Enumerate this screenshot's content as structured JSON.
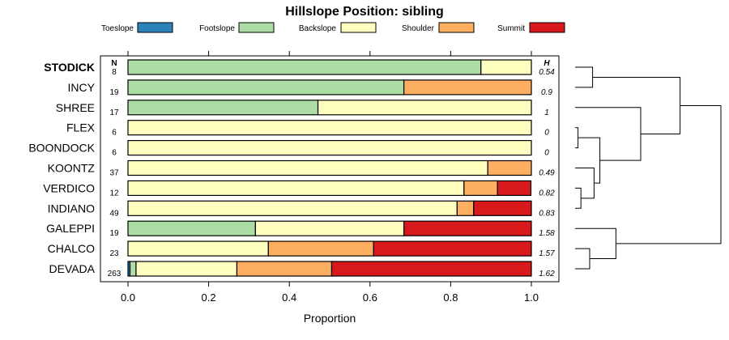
{
  "chart_data": {
    "type": "bar",
    "stacked": true,
    "orientation": "horizontal",
    "title": "Hillslope Position: sibling",
    "xlabel": "Proportion",
    "xlim": [
      0,
      1
    ],
    "xticks": [
      0.0,
      0.2,
      0.4,
      0.6,
      0.8,
      1.0
    ],
    "xtick_labels": [
      "0.0",
      "0.2",
      "0.4",
      "0.6",
      "0.8",
      "1.0"
    ],
    "legend_position": "top",
    "n_header": "N",
    "h_header": "H",
    "bold_category": "STODICK",
    "categories": [
      "STODICK",
      "INCY",
      "SHREE",
      "FLEX",
      "BOONDOCK",
      "KOONTZ",
      "VERDICO",
      "INDIANO",
      "GALEPPI",
      "CHALCO",
      "DEVADA"
    ],
    "n": [
      "8",
      "19",
      "17",
      "6",
      "6",
      "37",
      "12",
      "49",
      "19",
      "23",
      "263"
    ],
    "h": [
      "0.54",
      "0.9",
      "1",
      "0",
      "0",
      "0.49",
      "0.82",
      "0.83",
      "1.58",
      "1.57",
      "1.62"
    ],
    "series": [
      {
        "name": "Toeslope",
        "color": "#2B83BA",
        "values": [
          0,
          0,
          0,
          0,
          0,
          0,
          0,
          0,
          0,
          0,
          0.005
        ]
      },
      {
        "name": "Footslope",
        "color": "#ABDDA4",
        "values": [
          0.875,
          0.684,
          0.471,
          0,
          0,
          0,
          0,
          0,
          0.316,
          0,
          0.015
        ]
      },
      {
        "name": "Backslope",
        "color": "#FFFFBF",
        "values": [
          0.125,
          0,
          0.529,
          1,
          1,
          0.892,
          0.833,
          0.816,
          0.368,
          0.348,
          0.25
        ]
      },
      {
        "name": "Shoulder",
        "color": "#FDAE61",
        "values": [
          0,
          0.316,
          0,
          0,
          0,
          0.108,
          0.083,
          0.041,
          0,
          0.261,
          0.235
        ]
      },
      {
        "name": "Summit",
        "color": "#D7191C",
        "values": [
          0,
          0,
          0,
          0,
          0,
          0,
          0.083,
          0.143,
          0.316,
          0.391,
          0.495
        ]
      }
    ],
    "dendrogram": {
      "type": "hierarchical-clustering",
      "merges": [
        {
          "a": "STODICK",
          "b": "INCY",
          "height": 0.12
        },
        {
          "a": "FLEX",
          "b": "BOONDOCK",
          "height": 0.02
        },
        {
          "a": "VERDICO",
          "b": "INDIANO",
          "height": 0.04
        },
        {
          "a": "KOONTZ",
          "b": "VERDICO+INDIANO",
          "height": 0.13
        },
        {
          "a": "FLEX+BOONDOCK",
          "b": "KOONTZ+VERDICO+INDIANO",
          "height": 0.17
        },
        {
          "a": "SHREE",
          "b": "FLEX+BOONDOCK+KOONTZ+VERDICO+INDIANO",
          "height": 0.45
        },
        {
          "a": "STODICK+INCY",
          "b": "SHREE+FLEX+BOONDOCK+KOONTZ+VERDICO+INDIANO",
          "height": 0.72
        },
        {
          "a": "CHALCO",
          "b": "DEVADA",
          "height": 0.1
        },
        {
          "a": "GALEPPI",
          "b": "CHALCO+DEVADA",
          "height": 0.28
        },
        {
          "a": "STODICK+INCY+SHREE+FLEX+BOONDOCK+KOONTZ+VERDICO+INDIANO",
          "b": "GALEPPI+CHALCO+DEVADA",
          "height": 1.0
        }
      ]
    }
  }
}
